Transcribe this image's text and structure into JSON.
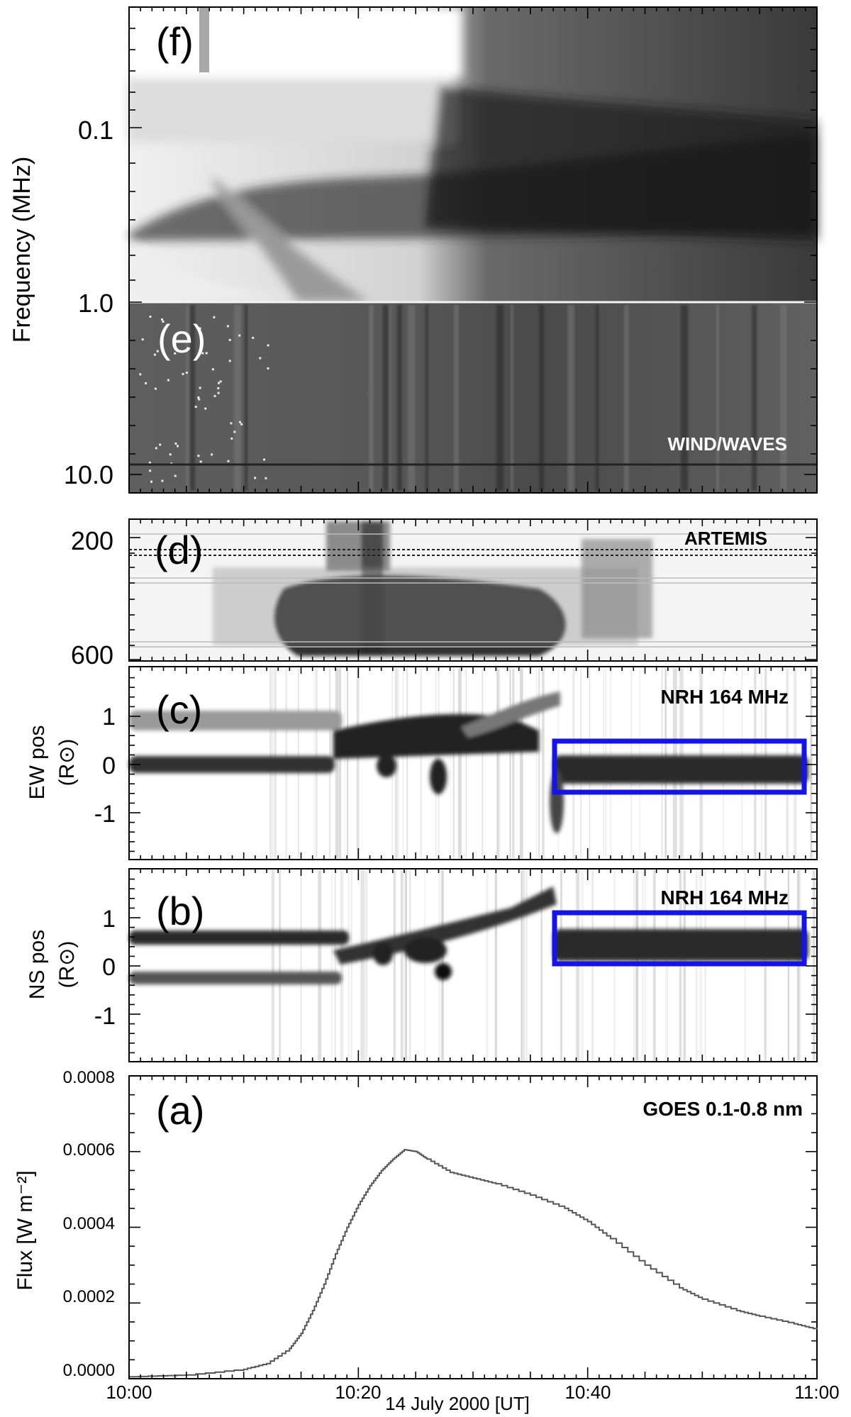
{
  "panels": {
    "f": {
      "label": "(f)"
    },
    "e": {
      "label": "(e)",
      "annotation": "WIND/WAVES"
    },
    "d": {
      "label": "(d)",
      "annotation": "ARTEMIS"
    },
    "c": {
      "label": "(c)",
      "annotation": "NRH 164 MHz",
      "ylabel_main": "EW pos",
      "ylabel_unit": "(R⊙)"
    },
    "b": {
      "label": "(b)",
      "annotation": "NRH 164 MHz",
      "ylabel_main": "NS pos",
      "ylabel_unit": "(R⊙)"
    },
    "a": {
      "label": "(a)",
      "annotation": "GOES 0.1-0.8 nm",
      "ylabel": "Flux [W m⁻²]"
    }
  },
  "freq_axis": {
    "label": "Frequency (MHz)",
    "ticks": [
      "0.1",
      "1.0",
      "10.0"
    ]
  },
  "artemis_axis": {
    "ticks": [
      "200",
      "600"
    ]
  },
  "pos_axis": {
    "ticks": [
      "1",
      "0",
      "-1"
    ]
  },
  "flux_axis": {
    "ticks": [
      "0.0008",
      "0.0006",
      "0.0004",
      "0.0002",
      "0.0000"
    ]
  },
  "time_axis": {
    "ticks": [
      "10:00",
      "10:20",
      "10:40",
      "11:00"
    ],
    "label": "14 July  2000  [UT]"
  },
  "colors": {
    "highlight_box": "#1414e6",
    "curve": "#555555"
  },
  "chart_data": {
    "type": "line",
    "title": "GOES 0.1-0.8 nm",
    "xlabel": "14 July  2000  [UT]",
    "ylabel": "Flux [W m⁻²]",
    "xlim": [
      "10:00",
      "11:00"
    ],
    "ylim": [
      0,
      0.0008
    ],
    "x": [
      "10:00",
      "10:05",
      "10:10",
      "10:12",
      "10:14",
      "10:15",
      "10:16",
      "10:17",
      "10:18",
      "10:19",
      "10:20",
      "10:21",
      "10:22",
      "10:23",
      "10:24",
      "10:25",
      "10:26",
      "10:28",
      "10:30",
      "10:32",
      "10:35",
      "10:38",
      "10:40",
      "10:42",
      "10:45",
      "10:48",
      "10:50",
      "10:53",
      "10:55",
      "10:58",
      "11:00"
    ],
    "series": [
      {
        "values": [
          5e-06,
          1e-05,
          2.5e-05,
          4e-05,
          8e-05,
          0.00012,
          0.00018,
          0.00025,
          0.00033,
          0.0004,
          0.00046,
          0.00051,
          0.00055,
          0.00058,
          0.000605,
          0.0006,
          0.00058,
          0.000545,
          0.00053,
          0.000515,
          0.000485,
          0.00045,
          0.000415,
          0.00037,
          0.0003,
          0.00024,
          0.00021,
          0.00018,
          0.000165,
          0.000145,
          0.00013
        ]
      }
    ]
  }
}
